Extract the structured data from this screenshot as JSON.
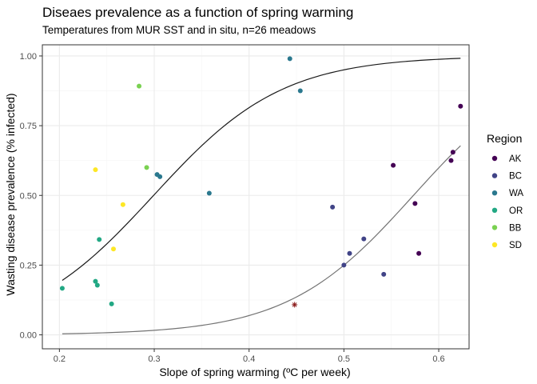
{
  "chart_data": {
    "type": "scatter",
    "title": "Diseaes prevalence as a function of spring warming",
    "subtitle": "Temperatures from MUR SST and in situ, n=26 meadows",
    "xlabel": "Slope of spring warming (ºC per week)",
    "ylabel": "Wasting disease prevalence (% infected)",
    "xlim": [
      0.182,
      0.632
    ],
    "ylim": [
      -0.05,
      1.04
    ],
    "x_ticks": [
      0.2,
      0.3,
      0.4,
      0.5,
      0.6
    ],
    "x_tick_labels": [
      "0.2",
      "0.3",
      "0.4",
      "0.5",
      "0.6"
    ],
    "y_ticks": [
      0.0,
      0.25,
      0.5,
      0.75,
      1.0
    ],
    "y_tick_labels": [
      "0.00",
      "0.25",
      "0.50",
      "0.75",
      "1.00"
    ],
    "grid": true,
    "legend": {
      "title": "Region",
      "position": "right"
    },
    "series": [
      {
        "name": "AK",
        "color": "#440154",
        "x": [
          0.623,
          0.615,
          0.613,
          0.552,
          0.575,
          0.579
        ],
        "y": [
          0.82,
          0.655,
          0.625,
          0.608,
          0.471,
          0.292
        ]
      },
      {
        "name": "BC",
        "color": "#414487",
        "x": [
          0.488,
          0.521,
          0.506,
          0.5,
          0.542
        ],
        "y": [
          0.458,
          0.344,
          0.292,
          0.25,
          0.217
        ]
      },
      {
        "name": "WA",
        "color": "#2A788E",
        "x": [
          0.443,
          0.454,
          0.303,
          0.306,
          0.358
        ],
        "y": [
          0.99,
          0.875,
          0.575,
          0.567,
          0.508
        ]
      },
      {
        "name": "OR",
        "color": "#22A884",
        "x": [
          0.203,
          0.238,
          0.24,
          0.242,
          0.255
        ],
        "y": [
          0.167,
          0.192,
          0.178,
          0.342,
          0.111
        ]
      },
      {
        "name": "BB",
        "color": "#7AD151",
        "x": [
          0.284,
          0.292
        ],
        "y": [
          0.892,
          0.6
        ]
      },
      {
        "name": "SD",
        "color": "#FDE725",
        "x": [
          0.238,
          0.267,
          0.257
        ],
        "y": [
          0.592,
          0.467,
          0.308
        ]
      }
    ],
    "fits": [
      {
        "color": "#1a1a1a",
        "intercept": -4.4,
        "slope": 14.7,
        "x_range": [
          0.203,
          0.623
        ]
      },
      {
        "color": "#737373",
        "intercept": -8.6,
        "slope": 15.0,
        "x_range": [
          0.203,
          0.623
        ]
      }
    ],
    "annotations": [
      {
        "symbol": "asterisk",
        "color": "#8B1A1A",
        "x": 0.448,
        "y": 0.108
      }
    ]
  }
}
